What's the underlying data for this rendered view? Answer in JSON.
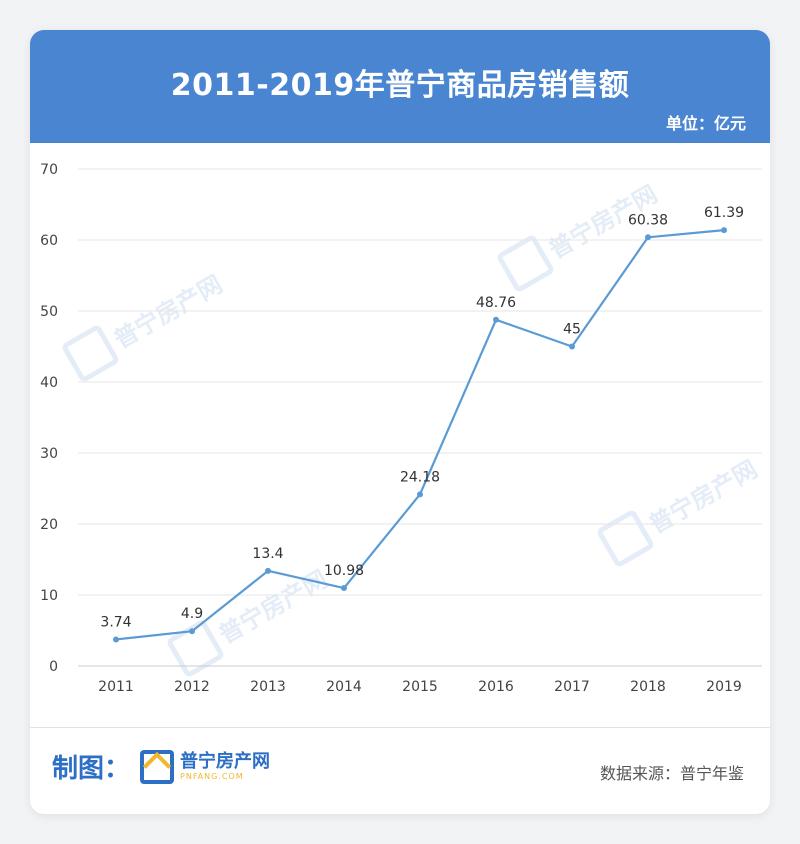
{
  "header": {
    "title": "2011-2019年普宁商品房销售额",
    "unit": "单位：亿元"
  },
  "footer": {
    "made_by": "制图：",
    "logo_name": "普宁房产网",
    "logo_sub": "PNFANG.COM",
    "source": "数据来源：普宁年鉴"
  },
  "watermark_text": "普宁房产网",
  "colors": {
    "header_bg": "#4a85d1",
    "line": "#5b9bd5",
    "brand_blue": "#2d6fc4",
    "brand_yellow": "#f3b62c"
  },
  "chart_data": {
    "type": "line",
    "title": "2011-2019年普宁商品房销售额",
    "categories": [
      "2011",
      "2012",
      "2013",
      "2014",
      "2015",
      "2016",
      "2017",
      "2018",
      "2019"
    ],
    "values": [
      3.74,
      4.9,
      13.4,
      10.98,
      24.18,
      48.76,
      45,
      60.38,
      61.39
    ],
    "data_labels": [
      "3.74",
      "4.9",
      "13.4",
      "10.98",
      "24.18",
      "48.76",
      "45",
      "60.38",
      "61.39"
    ],
    "ylim": [
      0,
      70
    ],
    "yticks": [
      0,
      10,
      20,
      30,
      40,
      50,
      60,
      70
    ],
    "grid": true,
    "xlabel": "",
    "ylabel": ""
  }
}
